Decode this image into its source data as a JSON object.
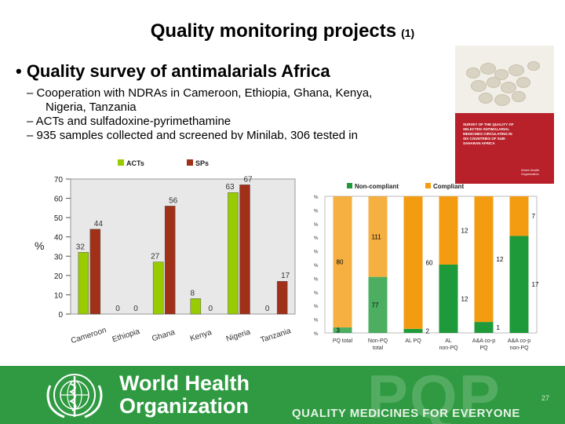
{
  "slide": {
    "title": "Quality monitoring projects",
    "title_suffix": "(1)",
    "bullet": "• Quality survey of antimalarials Africa",
    "sub_bullets": [
      "– Cooperation with NDRAs in Cameroon, Ethiopia, Ghana, Kenya,",
      "Nigeria, Tanzania",
      "– ACTs and sulfadoxine-pyrimethamine",
      "– 935 samples collected and screened by Minilab, 306 tested in"
    ]
  },
  "cover": {
    "text": "SURVEY OF THE QUALITY OF SELECTED ANTIMALARIAL MEDICINES CIRCULATING IN SIX COUNTRIES OF SUB-SAHARAN AFRICA",
    "publisher": "World Health Organization"
  },
  "chart_data": [
    {
      "type": "bar",
      "title": "",
      "ylabel": "%",
      "ylim": [
        0,
        70
      ],
      "yticks": [
        0,
        10,
        20,
        30,
        40,
        50,
        60,
        70
      ],
      "legend_position": "top",
      "categories": [
        "Cameroon",
        "Ethiopia",
        "Ghana",
        "Kenya",
        "Nigeria",
        "Tanzania"
      ],
      "series": [
        {
          "name": "ACTs",
          "color": "#99cc00",
          "values": [
            32,
            0,
            27,
            8,
            63,
            0
          ]
        },
        {
          "name": "SPs",
          "color": "#a03018",
          "values": [
            44,
            0,
            56,
            0,
            67,
            17
          ]
        }
      ]
    },
    {
      "type": "bar",
      "stacked": true,
      "legend_position": "top",
      "categories": [
        "PQ total",
        "Non-PQ total",
        "AL PQ",
        "AL non-PQ",
        "A&A co-p PQ",
        "A&A co-p non-PQ"
      ],
      "series": [
        {
          "name": "Non-compliant",
          "color": "#1f9a3a",
          "values": [
            3,
            77,
            2,
            12,
            1,
            17
          ]
        },
        {
          "name": "Compliant",
          "color": "#f39c12",
          "values": [
            80,
            111,
            60,
            12,
            12,
            7
          ]
        }
      ],
      "percent_values": [
        {
          "non_compliant": 4,
          "compliant": 96
        },
        {
          "non_compliant": 41,
          "compliant": 59
        },
        {
          "non_compliant": 3,
          "compliant": 97
        },
        {
          "non_compliant": 50,
          "compliant": 50
        },
        {
          "non_compliant": 8,
          "compliant": 92
        },
        {
          "non_compliant": 71,
          "compliant": 29
        }
      ],
      "ytick_label": "%",
      "yticks_count": 11
    }
  ],
  "footer": {
    "org_line1": "World Health",
    "org_line2": "Organization",
    "watermark": "PQP",
    "tagline": "QUALITY MEDICINES FOR EVERYONE",
    "page_number": "27"
  }
}
